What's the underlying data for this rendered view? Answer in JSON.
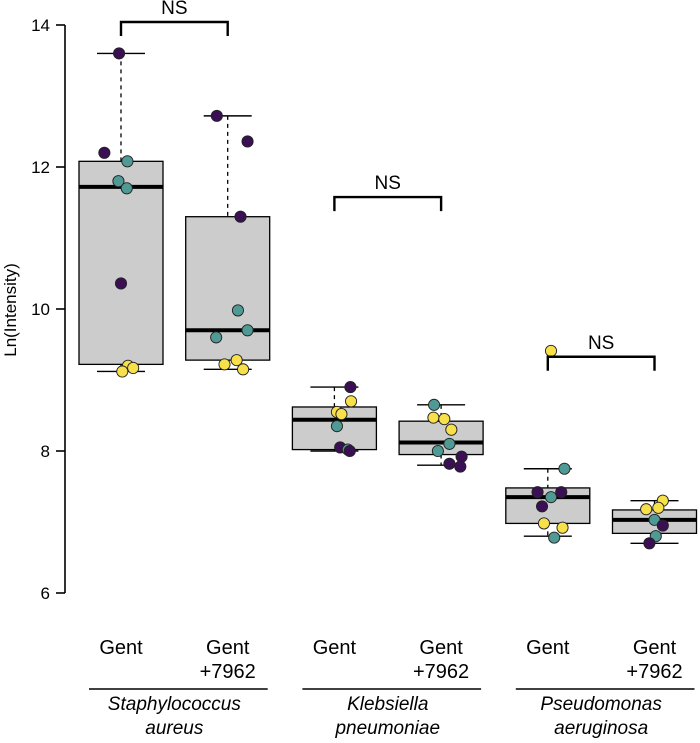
{
  "chart_data": {
    "type": "box",
    "ylabel": "Ln(Intensity)",
    "ylim": [
      6,
      14
    ],
    "yticks": [
      6,
      8,
      10,
      12,
      14
    ],
    "grid": false,
    "colors": {
      "box_fill": "#cccccc",
      "median": "#000000",
      "dot_purple": "#3b0f54",
      "dot_teal": "#4f9a94",
      "dot_yellow": "#f7e04a"
    },
    "groups": [
      {
        "name_line1": "Staphylococcus",
        "name_line2": "aureus",
        "ns_label": "NS",
        "boxes": [
          {
            "label_line1": "Gent",
            "label_line2": "",
            "q1": 9.22,
            "median": 11.72,
            "q3": 12.08,
            "whisker_low": 9.12,
            "whisker_high": 13.6,
            "points": [
              {
                "y": 13.6,
                "c": "purple",
                "dx": -0.03
              },
              {
                "y": 12.2,
                "c": "purple",
                "dx": -0.26
              },
              {
                "y": 12.08,
                "c": "teal",
                "dx": 0.1
              },
              {
                "y": 11.8,
                "c": "teal",
                "dx": -0.04
              },
              {
                "y": 11.7,
                "c": "teal",
                "dx": 0.09
              },
              {
                "y": 10.36,
                "c": "purple",
                "dx": 0.0
              },
              {
                "y": 9.2,
                "c": "yellow",
                "dx": 0.11
              },
              {
                "y": 9.17,
                "c": "yellow",
                "dx": 0.19
              },
              {
                "y": 9.12,
                "c": "yellow",
                "dx": 0.02
              }
            ]
          },
          {
            "label_line1": "Gent",
            "label_line2": "+7962",
            "q1": 9.28,
            "median": 9.7,
            "q3": 11.3,
            "whisker_low": 9.15,
            "whisker_high": 12.72,
            "points": [
              {
                "y": 12.72,
                "c": "purple",
                "dx": -0.17
              },
              {
                "y": 12.36,
                "c": "purple",
                "dx": 0.31
              },
              {
                "y": 11.3,
                "c": "purple",
                "dx": 0.2
              },
              {
                "y": 9.98,
                "c": "teal",
                "dx": 0.16
              },
              {
                "y": 9.7,
                "c": "teal",
                "dx": 0.31
              },
              {
                "y": 9.6,
                "c": "teal",
                "dx": -0.18
              },
              {
                "y": 9.28,
                "c": "yellow",
                "dx": 0.14
              },
              {
                "y": 9.22,
                "c": "yellow",
                "dx": -0.05
              },
              {
                "y": 9.15,
                "c": "yellow",
                "dx": 0.24
              }
            ]
          }
        ]
      },
      {
        "name_line1": "Klebsiella",
        "name_line2": "pneumoniae",
        "ns_label": "NS",
        "boxes": [
          {
            "label_line1": "Gent",
            "label_line2": "",
            "q1": 8.02,
            "median": 8.44,
            "q3": 8.62,
            "whisker_low": 8.0,
            "whisker_high": 8.9,
            "points": [
              {
                "y": 8.9,
                "c": "purple",
                "dx": 0.25
              },
              {
                "y": 8.7,
                "c": "yellow",
                "dx": 0.26
              },
              {
                "y": 8.55,
                "c": "yellow",
                "dx": 0.04
              },
              {
                "y": 8.52,
                "c": "yellow",
                "dx": 0.11
              },
              {
                "y": 8.35,
                "c": "teal",
                "dx": 0.04
              },
              {
                "y": 8.05,
                "c": "purple",
                "dx": 0.09
              },
              {
                "y": 8.02,
                "c": "teal",
                "dx": 0.21
              },
              {
                "y": 8.0,
                "c": "purple",
                "dx": 0.24
              }
            ]
          },
          {
            "label_line1": "Gent",
            "label_line2": "+7962",
            "q1": 7.95,
            "median": 8.12,
            "q3": 8.42,
            "whisker_low": 7.8,
            "whisker_high": 8.65,
            "points": [
              {
                "y": 8.65,
                "c": "teal",
                "dx": -0.11
              },
              {
                "y": 8.47,
                "c": "yellow",
                "dx": -0.12
              },
              {
                "y": 8.45,
                "c": "yellow",
                "dx": 0.05
              },
              {
                "y": 8.3,
                "c": "yellow",
                "dx": 0.16
              },
              {
                "y": 8.1,
                "c": "teal",
                "dx": 0.13
              },
              {
                "y": 8.0,
                "c": "teal",
                "dx": -0.05
              },
              {
                "y": 7.92,
                "c": "purple",
                "dx": 0.32
              },
              {
                "y": 7.82,
                "c": "purple",
                "dx": 0.13
              },
              {
                "y": 7.78,
                "c": "purple",
                "dx": 0.3
              }
            ]
          }
        ]
      },
      {
        "name_line1": "Pseudomonas",
        "name_line2": "aeruginosa",
        "ns_label": "NS",
        "boxes": [
          {
            "label_line1": "Gent",
            "label_line2": "",
            "q1": 6.98,
            "median": 7.35,
            "q3": 7.48,
            "whisker_low": 6.8,
            "whisker_high": 7.75,
            "points": [
              {
                "y": 9.41,
                "c": "yellow",
                "dx": 0.05
              },
              {
                "y": 7.75,
                "c": "teal",
                "dx": 0.26
              },
              {
                "y": 7.42,
                "c": "purple",
                "dx": -0.16
              },
              {
                "y": 7.42,
                "c": "purple",
                "dx": 0.21
              },
              {
                "y": 7.35,
                "c": "teal",
                "dx": 0.05
              },
              {
                "y": 7.22,
                "c": "purple",
                "dx": -0.09
              },
              {
                "y": 6.98,
                "c": "yellow",
                "dx": -0.06
              },
              {
                "y": 6.92,
                "c": "yellow",
                "dx": 0.23
              },
              {
                "y": 6.78,
                "c": "teal",
                "dx": 0.1
              }
            ]
          },
          {
            "label_line1": "Gent",
            "label_line2": "+7962",
            "q1": 6.84,
            "median": 7.03,
            "q3": 7.17,
            "whisker_low": 6.7,
            "whisker_high": 7.3,
            "points": [
              {
                "y": 7.3,
                "c": "yellow",
                "dx": 0.13
              },
              {
                "y": 7.2,
                "c": "yellow",
                "dx": 0.06
              },
              {
                "y": 7.18,
                "c": "yellow",
                "dx": -0.13
              },
              {
                "y": 7.03,
                "c": "teal",
                "dx": 0.0
              },
              {
                "y": 6.95,
                "c": "purple",
                "dx": 0.13
              },
              {
                "y": 6.8,
                "c": "teal",
                "dx": 0.02
              },
              {
                "y": 6.7,
                "c": "purple",
                "dx": -0.08
              }
            ]
          }
        ]
      }
    ]
  }
}
